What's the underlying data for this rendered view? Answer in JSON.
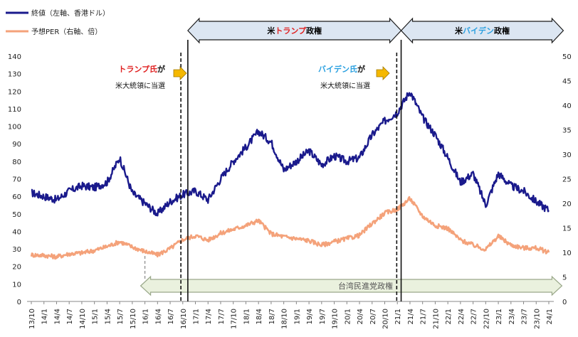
{
  "chart_data": {
    "type": "line",
    "title": "",
    "legend": [
      {
        "name": "終値（左軸、香港ドル）",
        "color": "#1a1a8c"
      },
      {
        "name": "予想PER（右軸、倍）",
        "color": "#f4a27a"
      }
    ],
    "left_axis": {
      "min": 0,
      "max": 140,
      "step": 10
    },
    "right_axis": {
      "min": 0,
      "max": 50,
      "step": 5
    },
    "x_tick_labels": [
      "13/10",
      "14/1",
      "14/4",
      "14/7",
      "14/10",
      "15/1",
      "15/4",
      "15/7",
      "15/10",
      "16/1",
      "16/4",
      "16/7",
      "16/10",
      "17/1",
      "17/4",
      "17/7",
      "17/10",
      "18/1",
      "18/4",
      "18/7",
      "18/10",
      "19/1",
      "19/4",
      "19/7",
      "19/10",
      "20/1",
      "20/4",
      "20/7",
      "20/10",
      "21/1",
      "21/4",
      "21/7",
      "21/10",
      "22/1",
      "22/4",
      "22/7",
      "22/10",
      "23/1",
      "23/4",
      "23/7",
      "23/10",
      "24/1"
    ],
    "series": [
      {
        "name": "終値（左軸、香港ドル）",
        "axis": "left",
        "color": "#1a1a8c",
        "x": [
          0,
          1,
          2,
          3,
          4,
          5,
          6,
          7,
          8,
          9,
          10,
          11,
          12,
          13,
          14,
          15,
          16,
          17,
          18,
          19,
          20,
          21,
          22,
          23,
          24,
          25,
          26,
          27,
          28,
          29,
          30,
          31,
          32,
          33,
          34,
          35,
          36,
          37,
          38,
          39,
          40,
          41
        ],
        "values": [
          62,
          60,
          58,
          63,
          66,
          65,
          68,
          82,
          62,
          56,
          50,
          57,
          61,
          63,
          58,
          70,
          80,
          88,
          97,
          91,
          75,
          80,
          86,
          78,
          83,
          80,
          82,
          95,
          103,
          108,
          120,
          105,
          95,
          82,
          68,
          73,
          55,
          73,
          66,
          63,
          57,
          52
        ]
      },
      {
        "name": "予想PER（右軸、倍）",
        "axis": "right",
        "color": "#f4a27a",
        "x": [
          0,
          1,
          2,
          3,
          4,
          5,
          6,
          7,
          8,
          9,
          10,
          11,
          12,
          13,
          14,
          15,
          16,
          17,
          18,
          19,
          20,
          21,
          22,
          23,
          24,
          25,
          26,
          27,
          28,
          29,
          30,
          31,
          32,
          33,
          34,
          35,
          36,
          37,
          38,
          39,
          40,
          41
        ],
        "values": [
          9.5,
          9.4,
          9.1,
          9.7,
          9.9,
          10.4,
          11.2,
          12.2,
          11.1,
          10.2,
          9.5,
          10.8,
          12.6,
          13.4,
          12.5,
          13.9,
          14.7,
          15.5,
          16.5,
          13.8,
          13.2,
          12.8,
          12.4,
          11.5,
          12.2,
          12.8,
          13.5,
          15.9,
          18.0,
          18.8,
          21.0,
          17.4,
          15.5,
          14.9,
          12.5,
          11.5,
          10.6,
          13.3,
          11.5,
          10.9,
          10.9,
          10.0
        ]
      }
    ],
    "annotations": [
      {
        "type": "vline",
        "x": 11.85,
        "label_line1_red": "トランプ氏",
        "label_line1_rest": "が",
        "label_line2": "米大統領に当選"
      },
      {
        "type": "vline",
        "x": 28.95,
        "label_line1_blue": "バイデン氏",
        "label_line1_rest": "が",
        "label_line2": "米大統領に当選"
      },
      {
        "type": "period",
        "from": 12.4,
        "to": 29.3,
        "label_pre": "米",
        "label_colored": "トランプ",
        "label_post": "政権",
        "color": "#e02020"
      },
      {
        "type": "period",
        "from": 29.3,
        "to": 41.7,
        "label_pre": "米",
        "label_colored": "バイデン",
        "label_post": "政権",
        "color": "#2aa0e0"
      },
      {
        "type": "period",
        "from": 9.0,
        "to": 41.7,
        "label": "台湾民進党政権"
      }
    ]
  }
}
